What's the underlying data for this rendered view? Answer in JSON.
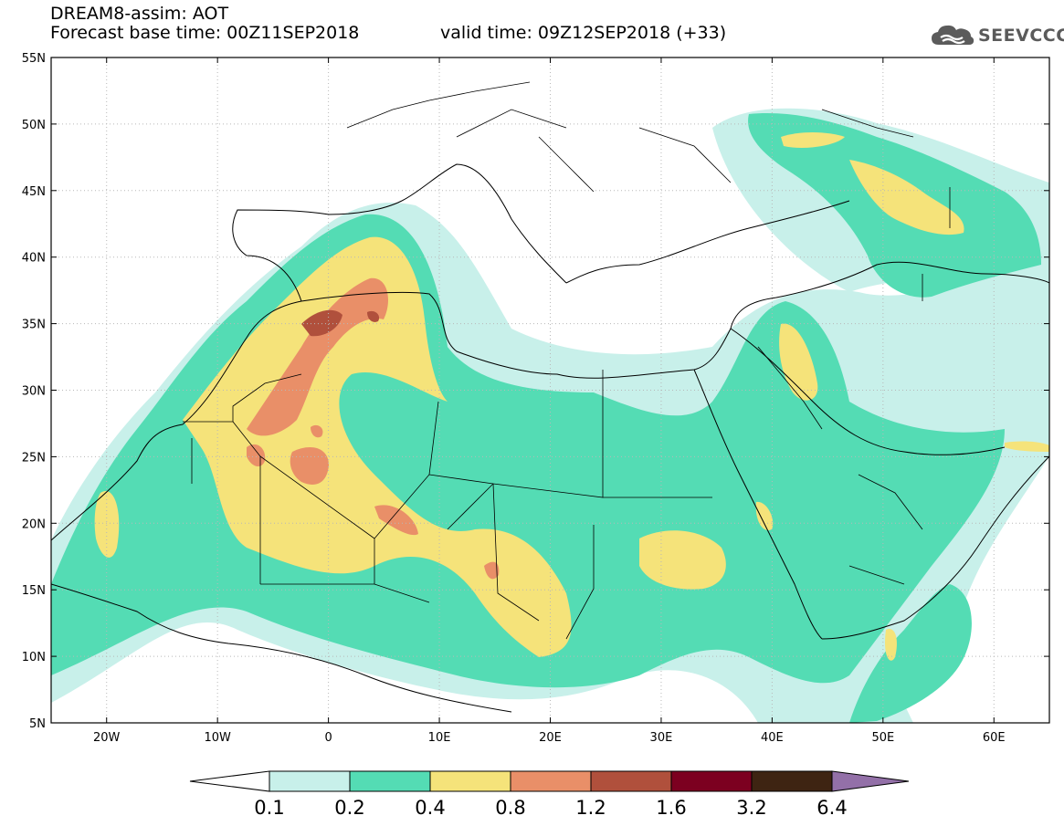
{
  "title": {
    "line1": "DREAM8-assim: AOT",
    "line2": "Forecast base time: 00Z11SEP2018",
    "line3": "valid time: 09Z12SEP2018 (+33)"
  },
  "logo": {
    "text": "SEEVCCC",
    "icon": "cloud-icon"
  },
  "map": {
    "lon_range": [
      -25,
      65
    ],
    "lat_range": [
      5,
      55
    ],
    "lat_labels": [
      "55N",
      "50N",
      "45N",
      "40N",
      "35N",
      "30N",
      "25N",
      "20N",
      "15N",
      "10N",
      "5N"
    ],
    "lon_labels": [
      "20W",
      "10W",
      "0",
      "10E",
      "20E",
      "30E",
      "40E",
      "50E",
      "60E"
    ],
    "grid": "dotted"
  },
  "colorbar": {
    "labels": [
      "0.1",
      "0.2",
      "0.4",
      "0.8",
      "1.2",
      "1.6",
      "3.2",
      "6.4"
    ],
    "colors": [
      "#ffffff",
      "#c8f0ea",
      "#54dcb4",
      "#f5e37a",
      "#e98f68",
      "#b0503c",
      "#7c0020",
      "#3e2412",
      "#9370a8"
    ]
  }
}
